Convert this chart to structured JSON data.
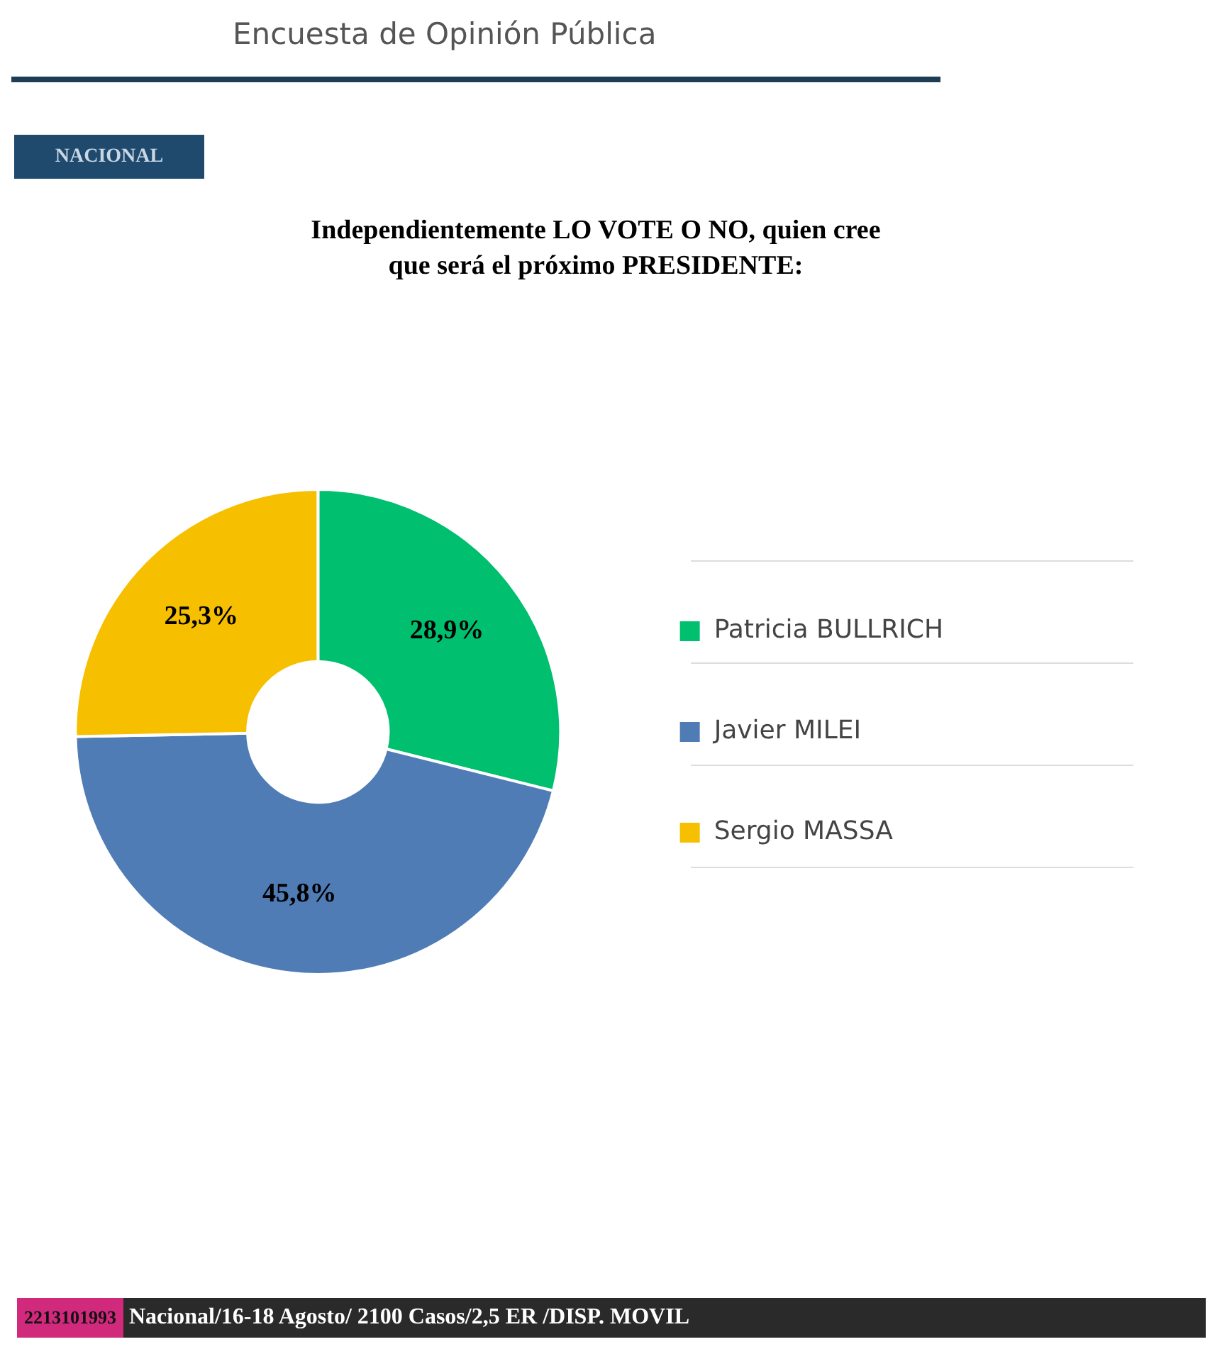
{
  "chart_data": {
    "type": "donut",
    "title": "Independientemente LO VOTE O NO, quien cree\nque será el próximo PRESIDENTE:",
    "categories": [
      "Patricia BULLRICH",
      "Javier MILEI",
      "Sergio MASSA"
    ],
    "values": [
      28.9,
      45.8,
      25.3
    ],
    "colors": [
      "#00bf6f",
      "#507cb6",
      "#f6bf00"
    ],
    "value_labels": [
      "28,9%",
      "45,8%",
      "25,3%"
    ],
    "legend": "right",
    "annotations": [
      "Encuesta de Opinión Pública",
      "NACIONAL",
      "2213101993",
      "Nacional/16-18 Agosto/ 2100 Casos/2,5 ER /DISP. MOVIL"
    ]
  }
}
